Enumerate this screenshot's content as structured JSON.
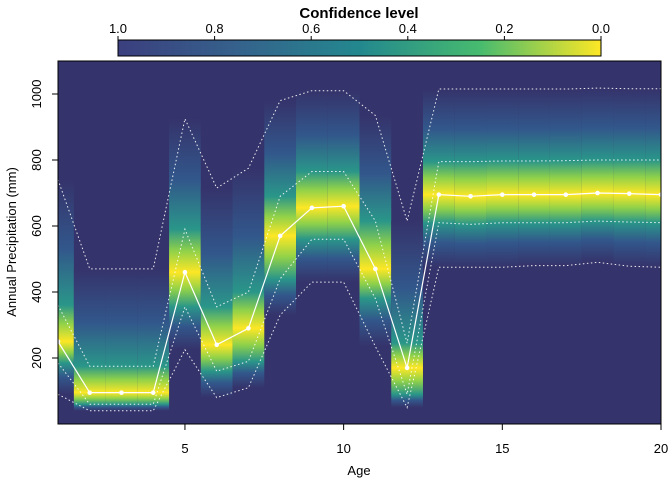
{
  "chart_data": {
    "type": "heatmap",
    "title": "",
    "xlabel": "Age",
    "ylabel": "Annual Precipitation (mm)",
    "xlim": [
      1,
      20
    ],
    "ylim": [
      0,
      1100
    ],
    "x_ticks": [
      5,
      10,
      15,
      20
    ],
    "y_ticks": [
      200,
      400,
      600,
      800,
      1000
    ],
    "grid": false,
    "legend": {
      "title": "Confidence level",
      "position": "top",
      "ticks": [
        1.0,
        0.8,
        0.6,
        0.4,
        0.2,
        0.0
      ],
      "tick_labels": [
        "1.0",
        "0.8",
        "0.6",
        "0.4",
        "0.2",
        "0.0"
      ],
      "colormap": "viridis"
    },
    "x": [
      1,
      2,
      3,
      4,
      5,
      6,
      7,
      8,
      9,
      10,
      11,
      12,
      13,
      14,
      15,
      16,
      17,
      18,
      19,
      20
    ],
    "median": [
      250,
      95,
      95,
      95,
      460,
      240,
      290,
      570,
      655,
      660,
      470,
      170,
      695,
      690,
      695,
      695,
      695,
      700,
      698,
      695
    ],
    "inner_upper": [
      360,
      175,
      175,
      175,
      590,
      355,
      400,
      690,
      765,
      765,
      615,
      245,
      795,
      795,
      797,
      797,
      798,
      800,
      800,
      800
    ],
    "inner_lower": [
      185,
      60,
      60,
      60,
      355,
      160,
      190,
      440,
      560,
      560,
      380,
      90,
      610,
      605,
      610,
      610,
      610,
      615,
      612,
      610
    ],
    "outer_upper": [
      740,
      470,
      470,
      470,
      925,
      715,
      775,
      980,
      1010,
      1010,
      935,
      615,
      1015,
      1015,
      1015,
      1015,
      1015,
      1018,
      1016,
      1016
    ],
    "outer_lower": [
      90,
      40,
      40,
      40,
      225,
      80,
      110,
      330,
      430,
      430,
      235,
      50,
      475,
      475,
      475,
      480,
      480,
      490,
      478,
      475
    ],
    "colors": {
      "low": "#35336b",
      "mid": "#2b9a8a",
      "high": "#fde725",
      "line": "#ffffff"
    }
  }
}
